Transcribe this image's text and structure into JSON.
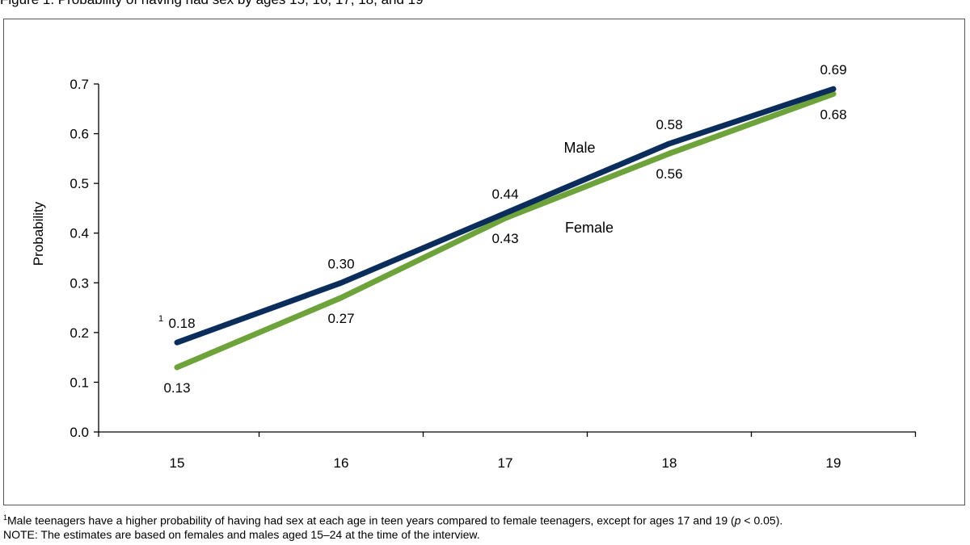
{
  "title": "Figure 1. Probability of having had sex by ages 15, 16, 17, 18, and 19",
  "colors": {
    "male": "#0b2d5c",
    "female": "#6ea23a",
    "axis": "#000000"
  },
  "chart_data": {
    "type": "line",
    "title": "Figure 1. Probability of having had sex by ages 15, 16, 17, 18, and 19",
    "xlabel": "",
    "ylabel": "Probability",
    "x": [
      "15",
      "16",
      "17",
      "18",
      "19"
    ],
    "ylim": [
      0,
      0.7
    ],
    "yticks": [
      "0.0",
      "0.1",
      "0.2",
      "0.3",
      "0.4",
      "0.5",
      "0.6",
      "0.7"
    ],
    "grid": false,
    "legend": "inline-labels",
    "series": [
      {
        "name": "Male",
        "values": [
          0.18,
          0.3,
          0.44,
          0.58,
          0.69
        ],
        "labels": [
          "0.18",
          "0.30",
          "0.44",
          "0.58",
          "0.69"
        ],
        "footnote_marker": "1"
      },
      {
        "name": "Female",
        "values": [
          0.13,
          0.27,
          0.43,
          0.56,
          0.68
        ],
        "labels": [
          "0.13",
          "0.27",
          "0.43",
          "0.56",
          "0.68"
        ]
      }
    ]
  },
  "notes": {
    "footnote_marker": "1",
    "footnote_a": "Male teenagers have a higher probability of having had sex at each age in teen years compared to female teenagers, except for ages 17 and 19 (",
    "footnote_p": "p",
    "footnote_b": " < 0.05).",
    "note": "NOTE: The estimates are based on females and males aged 15–24 at the time of the interview."
  }
}
